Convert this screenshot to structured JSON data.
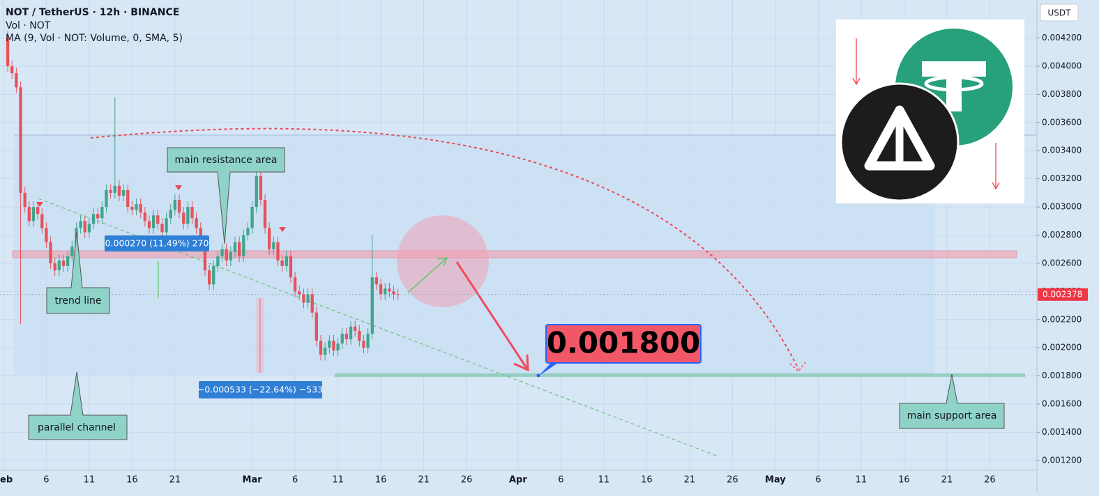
{
  "chart_data": {
    "type": "candlestick",
    "title": "NOT / TetherUS · 12h · BINANCE",
    "indicators": [
      "Vol · NOT",
      "MA (9, Vol · NOT: Volume, 0, SMA, 5)"
    ],
    "currency": "USDT",
    "up_color": "#3fa58f",
    "down_color": "#e5535c",
    "x": [
      0.5,
      1,
      1.5,
      2,
      2.5,
      3,
      3.5,
      4,
      4.5,
      5,
      5.5,
      6,
      6.5,
      7,
      7.5,
      8,
      8.5,
      9,
      9.5,
      10,
      10.5,
      11,
      11.5,
      12,
      12.5,
      13,
      13.5,
      14,
      14.5,
      15,
      15.5,
      16,
      16.5,
      17,
      17.5,
      18,
      18.5,
      19,
      19.5,
      20,
      20.5,
      21,
      21.5,
      22,
      22.5,
      23,
      23.5,
      24,
      24.5,
      25,
      25.5,
      26,
      26.5,
      27,
      27.5,
      28,
      28.5,
      29,
      29.5,
      30,
      30.5,
      31,
      31.5,
      32,
      32.5,
      33,
      33.5,
      34,
      34.5,
      35,
      35.5,
      36,
      36.5,
      37,
      37.5,
      38,
      38.5,
      39,
      39.5,
      40,
      40.5,
      41,
      41.5,
      42,
      42.5,
      43,
      43.5,
      44,
      44.5,
      45,
      45.5,
      46
    ],
    "open": [
      0.0042,
      0.004,
      0.00395,
      0.00385,
      0.0031,
      0.003,
      0.0029,
      0.003,
      0.00295,
      0.00285,
      0.00275,
      0.0026,
      0.00255,
      0.00262,
      0.00258,
      0.00265,
      0.00272,
      0.00285,
      0.0029,
      0.00282,
      0.00288,
      0.00295,
      0.00292,
      0.003,
      0.00312,
      0.0031,
      0.00315,
      0.00308,
      0.00312,
      0.003,
      0.00298,
      0.00302,
      0.00296,
      0.0029,
      0.00285,
      0.00294,
      0.00288,
      0.00282,
      0.00292,
      0.00298,
      0.00305,
      0.00296,
      0.00288,
      0.003,
      0.00292,
      0.00285,
      0.00275,
      0.00255,
      0.00245,
      0.00258,
      0.00265,
      0.0027,
      0.00262,
      0.00268,
      0.00275,
      0.00265,
      0.0028,
      0.00285,
      0.003,
      0.00322,
      0.00305,
      0.00285,
      0.0027,
      0.00275,
      0.00262,
      0.00258,
      0.00265,
      0.0025,
      0.0024,
      0.00238,
      0.00232,
      0.00238,
      0.00225,
      0.00205,
      0.00195,
      0.002,
      0.00205,
      0.00198,
      0.00203,
      0.0021,
      0.00206,
      0.00215,
      0.00212,
      0.00205,
      0.002,
      0.0021,
      0.0025,
      0.00245,
      0.00238,
      0.00242,
      0.0024,
      0.00238
    ],
    "high": [
      0.00425,
      0.00404,
      0.00399,
      0.00389,
      0.00314,
      0.00304,
      0.00304,
      0.00304,
      0.00299,
      0.00289,
      0.00279,
      0.00264,
      0.00266,
      0.00266,
      0.00269,
      0.00276,
      0.00289,
      0.00294,
      0.00294,
      0.00292,
      0.00299,
      0.00299,
      0.00304,
      0.00316,
      0.00316,
      0.00378,
      0.00319,
      0.00316,
      0.00316,
      0.00304,
      0.00306,
      0.00306,
      0.003,
      0.00294,
      0.00298,
      0.00298,
      0.00292,
      0.00296,
      0.00302,
      0.00309,
      0.00309,
      0.003,
      0.00304,
      0.00304,
      0.00296,
      0.00289,
      0.00279,
      0.00259,
      0.00262,
      0.00269,
      0.00274,
      0.00274,
      0.00272,
      0.00279,
      0.00279,
      0.00284,
      0.00289,
      0.00304,
      0.00326,
      0.00326,
      0.00309,
      0.00289,
      0.00279,
      0.00279,
      0.00266,
      0.00269,
      0.00269,
      0.00254,
      0.00244,
      0.00242,
      0.00242,
      0.00242,
      0.00229,
      0.00209,
      0.00204,
      0.00209,
      0.00209,
      0.00207,
      0.00214,
      0.00214,
      0.00219,
      0.00219,
      0.00216,
      0.00209,
      0.00214,
      0.0028,
      0.00254,
      0.00249,
      0.00246,
      0.00246,
      0.00244,
      0.00242
    ],
    "low": [
      0.00396,
      0.00391,
      0.00381,
      0.00217,
      0.00296,
      0.00286,
      0.00286,
      0.00291,
      0.00281,
      0.00271,
      0.00256,
      0.00251,
      0.00251,
      0.00254,
      0.00254,
      0.00261,
      0.00268,
      0.00281,
      0.00278,
      0.00278,
      0.00284,
      0.00288,
      0.00288,
      0.00296,
      0.00306,
      0.00306,
      0.00304,
      0.00304,
      0.00296,
      0.00294,
      0.00294,
      0.00292,
      0.00286,
      0.00281,
      0.00281,
      0.00284,
      0.00278,
      0.00278,
      0.00288,
      0.00294,
      0.00292,
      0.00284,
      0.00284,
      0.00288,
      0.00281,
      0.00271,
      0.00251,
      0.00241,
      0.00241,
      0.00254,
      0.00261,
      0.00258,
      0.00258,
      0.00264,
      0.00261,
      0.00261,
      0.00276,
      0.00281,
      0.00296,
      0.00301,
      0.00281,
      0.00266,
      0.00266,
      0.00258,
      0.00254,
      0.00254,
      0.00246,
      0.00236,
      0.00234,
      0.00228,
      0.00228,
      0.00221,
      0.00201,
      0.00191,
      0.00191,
      0.00196,
      0.00194,
      0.00194,
      0.00199,
      0.00202,
      0.00202,
      0.00208,
      0.00201,
      0.00196,
      0.00196,
      0.00206,
      0.00241,
      0.00234,
      0.00234,
      0.00236,
      0.00234,
      0.00234
    ],
    "close": [
      0.004,
      0.00395,
      0.00385,
      0.0031,
      0.003,
      0.0029,
      0.003,
      0.00295,
      0.00285,
      0.00275,
      0.0026,
      0.00255,
      0.00262,
      0.00258,
      0.00265,
      0.00272,
      0.00285,
      0.0029,
      0.00282,
      0.00288,
      0.00295,
      0.00292,
      0.003,
      0.00312,
      0.0031,
      0.00315,
      0.00308,
      0.00312,
      0.003,
      0.00298,
      0.00302,
      0.00296,
      0.0029,
      0.00285,
      0.00294,
      0.00288,
      0.00282,
      0.00292,
      0.00298,
      0.00305,
      0.00296,
      0.00288,
      0.003,
      0.00292,
      0.00285,
      0.00275,
      0.00255,
      0.00245,
      0.00258,
      0.00265,
      0.0027,
      0.00262,
      0.00268,
      0.00275,
      0.00265,
      0.0028,
      0.00285,
      0.003,
      0.00322,
      0.00305,
      0.00285,
      0.0027,
      0.00275,
      0.00262,
      0.00258,
      0.00265,
      0.0025,
      0.0024,
      0.00238,
      0.00232,
      0.00238,
      0.00225,
      0.00205,
      0.00195,
      0.002,
      0.00205,
      0.00198,
      0.00203,
      0.0021,
      0.00206,
      0.00215,
      0.00212,
      0.00205,
      0.002,
      0.0021,
      0.0025,
      0.00245,
      0.00238,
      0.00242,
      0.0024,
      0.00238,
      0.002378
    ],
    "last_price": 0.002378,
    "target": {
      "value": 0.0018,
      "label": "0.001800"
    },
    "xlim": [
      -0.4,
      120.5
    ],
    "ylim": [
      0.00113,
      0.00447
    ],
    "xticks": [
      {
        "value": 0,
        "label": "Feb"
      },
      {
        "value": 5,
        "label": "6"
      },
      {
        "value": 10,
        "label": "11"
      },
      {
        "value": 15,
        "label": "16"
      },
      {
        "value": 20,
        "label": "21"
      },
      {
        "value": 29,
        "label": "Mar"
      },
      {
        "value": 34,
        "label": "6"
      },
      {
        "value": 39,
        "label": "11"
      },
      {
        "value": 44,
        "label": "16"
      },
      {
        "value": 49,
        "label": "21"
      },
      {
        "value": 54,
        "label": "26"
      },
      {
        "value": 60,
        "label": "Apr"
      },
      {
        "value": 65,
        "label": "6"
      },
      {
        "value": 70,
        "label": "11"
      },
      {
        "value": 75,
        "label": "16"
      },
      {
        "value": 80,
        "label": "21"
      },
      {
        "value": 85,
        "label": "26"
      },
      {
        "value": 90,
        "label": "May"
      },
      {
        "value": 95,
        "label": "6"
      },
      {
        "value": 100,
        "label": "11"
      },
      {
        "value": 105,
        "label": "16"
      },
      {
        "value": 110,
        "label": "21"
      },
      {
        "value": 115,
        "label": "26"
      }
    ],
    "yticks": [
      {
        "value": 0.0042,
        "label": "0.004200"
      },
      {
        "value": 0.004,
        "label": "0.004000"
      },
      {
        "value": 0.0038,
        "label": "0.003800"
      },
      {
        "value": 0.0036,
        "label": "0.003600"
      },
      {
        "value": 0.0034,
        "label": "0.003400"
      },
      {
        "value": 0.0032,
        "label": "0.003200"
      },
      {
        "value": 0.003,
        "label": "0.003000"
      },
      {
        "value": 0.0028,
        "label": "0.002800"
      },
      {
        "value": 0.0026,
        "label": "0.002600"
      },
      {
        "value": 0.0024,
        "label": "0.002400"
      },
      {
        "value": 0.0022,
        "label": "0.002200"
      },
      {
        "value": 0.002,
        "label": "0.002000"
      },
      {
        "value": 0.0018,
        "label": "0.001800"
      },
      {
        "value": 0.0016,
        "label": "0.001600"
      },
      {
        "value": 0.0014,
        "label": "0.001400"
      },
      {
        "value": 0.0012,
        "label": "0.001200"
      }
    ],
    "grid": true,
    "annotations": [
      "main resistance area",
      "trend line",
      "parallel channel",
      "main support area",
      "0.000270 (11.49%) 270",
      "−0.000533 (−22.64%) −533"
    ]
  }
}
